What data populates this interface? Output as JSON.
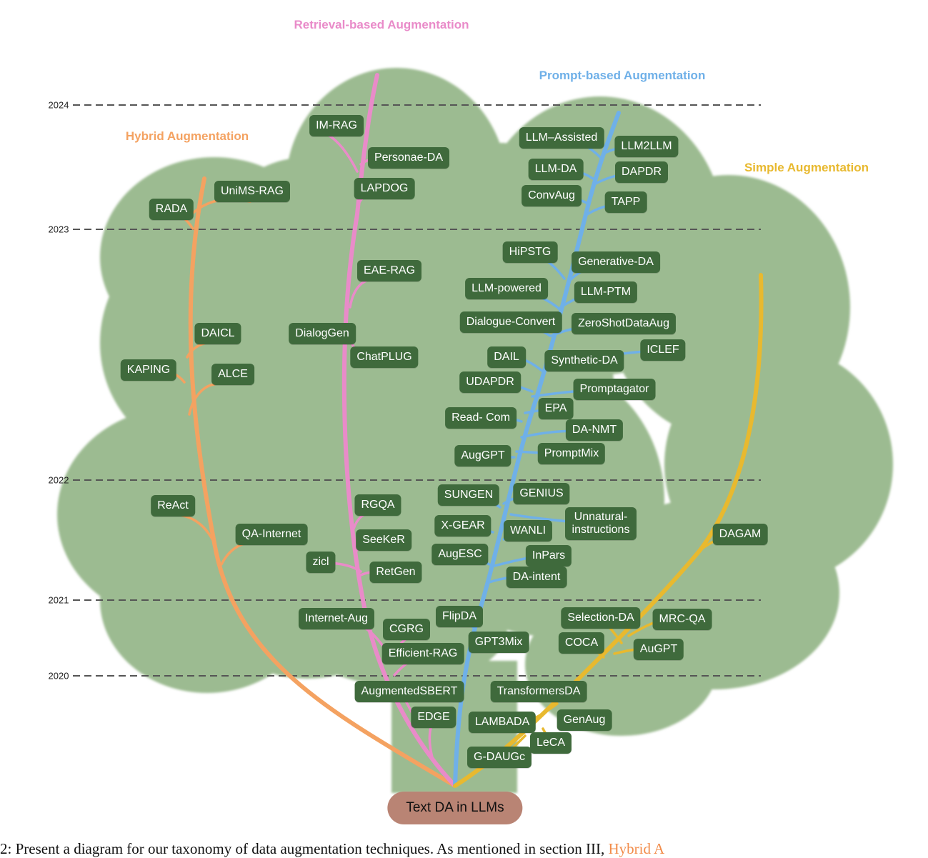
{
  "root_label": "Text DA in LLMs",
  "caption": {
    "text": "2: Present a diagram for our taxonomy of data augmentation techniques. As mentioned in section III,",
    "highlight": "Hybrid A"
  },
  "categories": {
    "retrieval": {
      "label": "Retrieval-based Augmentation",
      "color": "#e98bc9"
    },
    "prompt": {
      "label": "Prompt-based Augmentation",
      "color": "#6fb0e8"
    },
    "hybrid": {
      "label": "Hybrid Augmentation",
      "color": "#f4a261"
    },
    "simple": {
      "label": "Simple Augmentation",
      "color": "#e8b92f"
    }
  },
  "years": [
    "2024",
    "2023",
    "2022",
    "2021",
    "2020"
  ],
  "methods": {
    "hybrid": [
      "RADA",
      "UniMS-RAG",
      "DAICL",
      "KAPING",
      "ALCE",
      "ReAct",
      "QA-Internet"
    ],
    "retrieval": [
      "IM-RAG",
      "Personae-DA",
      "LAPDOG",
      "EAE-RAG",
      "DialogGen",
      "ChatPLUG",
      "RGQA",
      "SeeKeR",
      "zicl",
      "RetGen",
      "Internet-Aug",
      "CGRG",
      "Efficient-RAG",
      "AugmentedSBERT",
      "EDGE"
    ],
    "prompt": [
      "LLM–Assisted",
      "LLM2LLM",
      "LLM-DA",
      "DAPDR",
      "ConvAug",
      "TAPP",
      "HiPSTG",
      "Generative-DA",
      "LLM-powered",
      "LLM-PTM",
      "Dialogue-Convert",
      "ZeroShotDataAug",
      "ICLEF",
      "DAIL",
      "Synthetic-DA",
      "UDAPDR",
      "Promptagator",
      "Read- Com",
      "EPA",
      "DA-NMT",
      "AugGPT",
      "PromptMix",
      "SUNGEN",
      "GENIUS",
      "Unnatural-instructions",
      "X-GEAR",
      "WANLI",
      "AugESC",
      "InPars",
      "DA-intent",
      "FlipDA",
      "GPT3Mix"
    ],
    "simple": [
      "DAGAM",
      "Selection-DA",
      "MRC-QA",
      "COCA",
      "AuGPT",
      "TransformersDA",
      "LAMBADA",
      "GenAug",
      "LeCA",
      "G-DAUGc"
    ]
  },
  "colors": {
    "tree_canopy": "#9cbb91",
    "tree_trunk": "#9cbb91",
    "node_bg": "#3f6a3c",
    "root_bg": "#b98474",
    "year_line": "#555555"
  }
}
